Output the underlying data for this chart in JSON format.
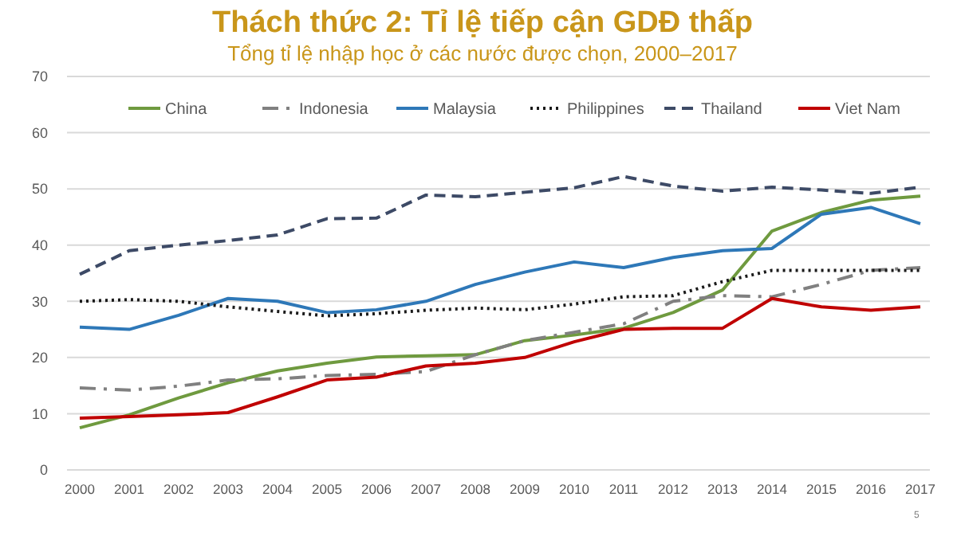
{
  "chart_data": {
    "type": "line",
    "title": "Thách thức 2: Tỉ lệ tiếp cận GDĐ thấp",
    "subtitle": "Tổng tỉ lệ nhập học ở các nước được chọn, 2000–2017",
    "categories": [
      "2000",
      "2001",
      "2002",
      "2003",
      "2004",
      "2005",
      "2006",
      "2007",
      "2008",
      "2009",
      "2010",
      "2011",
      "2012",
      "2013",
      "2014",
      "2015",
      "2016",
      "2017"
    ],
    "series": [
      {
        "name": "China",
        "color": "#6f9a3f",
        "line_style": "solid",
        "values": [
          7.5,
          9.8,
          12.8,
          15.5,
          17.6,
          19,
          20.1,
          20.3,
          20.5,
          23,
          24,
          25.2,
          28,
          32,
          42.5,
          45.8,
          48,
          48.7
        ]
      },
      {
        "name": "Indonesia",
        "color": "#808080",
        "line_style": "dashdot",
        "values": [
          14.6,
          14.2,
          14.9,
          16,
          16.2,
          16.8,
          17,
          17.5,
          20.5,
          23,
          24.5,
          26,
          30,
          31,
          30.8,
          33,
          35.5,
          36
        ]
      },
      {
        "name": "Malaysia",
        "color": "#2e78b8",
        "line_style": "solid",
        "values": [
          25.4,
          25,
          27.5,
          30.5,
          30,
          28,
          28.5,
          30,
          33,
          35.2,
          37,
          36,
          37.8,
          39,
          39.4,
          45.5,
          46.7,
          43.8
        ]
      },
      {
        "name": "Philippines",
        "color": "#1a1a1a",
        "line_style": "dotted",
        "values": [
          30,
          30.3,
          30,
          29,
          28.2,
          27.4,
          27.8,
          28.4,
          28.8,
          28.5,
          29.5,
          30.8,
          31,
          33.5,
          35.5,
          35.5,
          35.5,
          35.5
        ]
      },
      {
        "name": "Thailand",
        "color": "#3d4a66",
        "line_style": "dashed",
        "values": [
          34.8,
          39,
          40,
          40.8,
          41.8,
          44.7,
          44.8,
          48.9,
          48.6,
          49.4,
          50.2,
          52.2,
          50.5,
          49.6,
          50.3,
          49.8,
          49.2,
          50.3
        ]
      },
      {
        "name": "Viet Nam",
        "color": "#c00000",
        "line_style": "solid",
        "values": [
          9.2,
          9.5,
          9.8,
          10.2,
          13,
          16,
          16.5,
          18.5,
          19,
          20,
          22.8,
          25,
          25.2,
          25.2,
          30.5,
          29,
          28.4,
          29
        ]
      }
    ],
    "ylim": [
      0,
      70
    ],
    "yticks": [
      0,
      10,
      20,
      30,
      40,
      50,
      60,
      70
    ],
    "grid": "y",
    "legend": "top",
    "annotations": [
      "5"
    ]
  }
}
